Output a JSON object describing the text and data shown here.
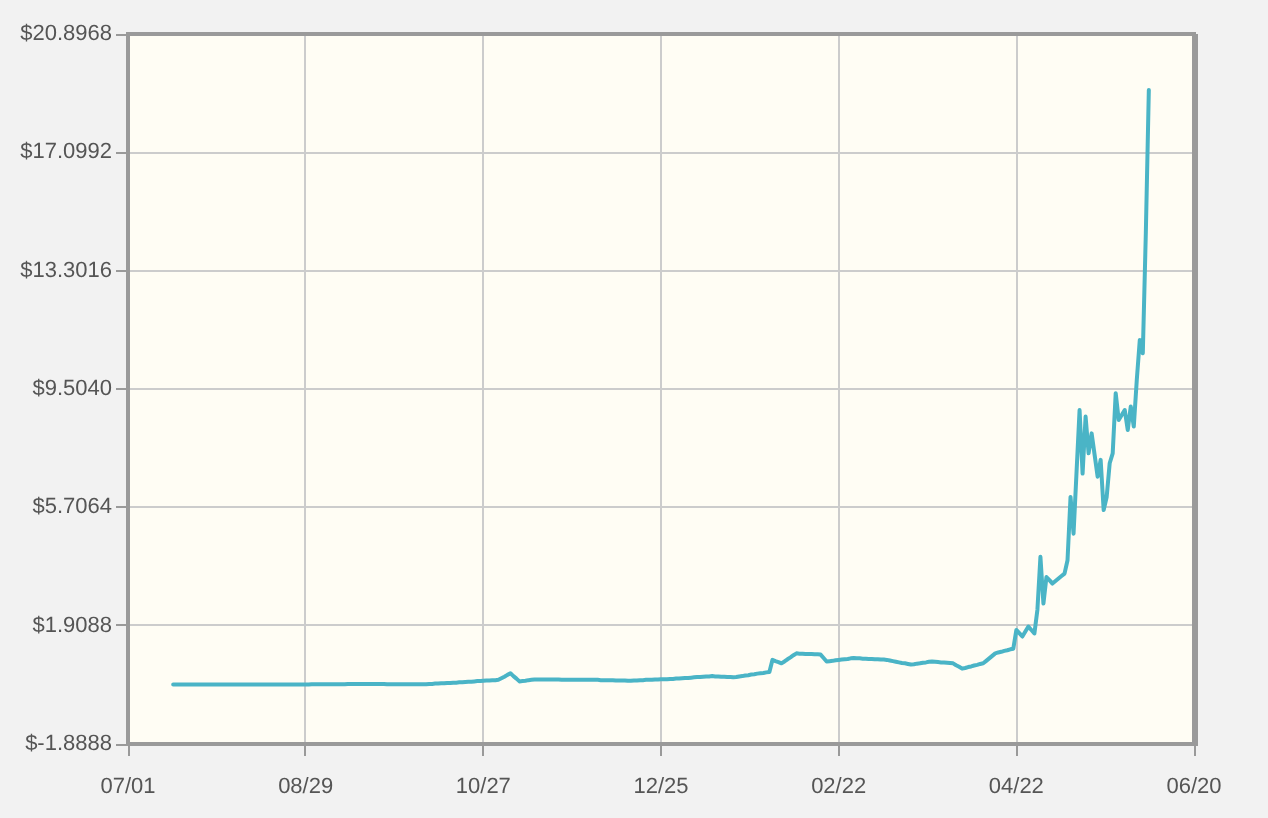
{
  "chart_data": {
    "type": "line",
    "categories": [
      "07/01",
      null,
      null,
      null,
      null,
      null,
      null,
      null,
      null,
      null,
      null,
      null,
      null,
      null,
      null,
      null,
      null,
      null,
      null,
      null,
      null,
      null,
      null,
      null,
      null,
      null,
      null,
      null,
      null,
      null,
      null,
      null,
      null,
      null,
      null,
      null,
      null,
      null,
      null,
      null,
      null,
      null,
      null,
      null,
      null,
      null,
      null,
      null,
      null,
      null,
      null,
      null,
      null,
      null,
      null,
      null,
      null,
      null,
      null,
      "08/29",
      null,
      null,
      null,
      null,
      null,
      null,
      null,
      null,
      null,
      null,
      null,
      null,
      null,
      null,
      null,
      null,
      null,
      null,
      null,
      null,
      null,
      null,
      null,
      null,
      null,
      null,
      null,
      null,
      null,
      null,
      null,
      null,
      null,
      null,
      null,
      null,
      null,
      null,
      null,
      null,
      null,
      null,
      null,
      null,
      null,
      null,
      null,
      null,
      null,
      null,
      null,
      null,
      null,
      null,
      null,
      null,
      null,
      null,
      "10/27",
      null,
      null,
      null,
      null,
      null,
      null,
      null,
      null,
      null,
      null,
      null,
      null,
      null,
      null,
      null,
      null,
      null,
      null,
      null,
      null,
      null,
      null,
      null,
      null,
      null,
      null,
      null,
      null,
      null,
      null,
      null,
      null,
      null,
      null,
      null,
      null,
      null,
      null,
      null,
      null,
      null,
      null,
      null,
      null,
      null,
      null,
      null,
      null,
      null,
      null,
      null,
      null,
      null,
      null,
      null,
      null,
      null,
      null,
      "12/25",
      null,
      null,
      null,
      null,
      null,
      null,
      null,
      null,
      null,
      null,
      null,
      null,
      null,
      null,
      null,
      null,
      null,
      null,
      null,
      null,
      null,
      null,
      null,
      null,
      null,
      null,
      null,
      null,
      null,
      null,
      null,
      null,
      null,
      null,
      null,
      null,
      null,
      null,
      null,
      null,
      null,
      null,
      null,
      null,
      null,
      null,
      null,
      null,
      null,
      null,
      null,
      null,
      null,
      null,
      null,
      null,
      null,
      null,
      "02/22",
      null,
      null,
      null,
      null,
      null,
      null,
      null,
      null,
      null,
      null,
      null,
      null,
      null,
      null,
      null,
      null,
      null,
      null,
      null,
      null,
      null,
      null,
      null,
      null,
      null,
      null,
      null,
      null,
      null,
      null,
      null,
      null,
      null,
      null,
      null,
      null,
      null,
      null,
      null,
      null,
      null,
      null,
      null,
      null,
      null,
      null,
      null,
      null,
      null,
      null,
      null,
      null,
      null,
      null,
      null,
      null,
      null,
      null,
      "04/22",
      null,
      null,
      null,
      null,
      null,
      null,
      null,
      null,
      null,
      null,
      null,
      null,
      null,
      null,
      null,
      null,
      null,
      null,
      null,
      null,
      null,
      null,
      null,
      null,
      null,
      null,
      null,
      null,
      null,
      null,
      null,
      null,
      null,
      null,
      null,
      null,
      null,
      null,
      null,
      null,
      null,
      null,
      null,
      null,
      null,
      null,
      null,
      null,
      null,
      null,
      null,
      null,
      null,
      null,
      null,
      null,
      null,
      null,
      "06/20"
    ],
    "values": [
      null,
      null,
      null,
      null,
      null,
      null,
      null,
      null,
      null,
      null,
      null,
      null,
      null,
      null,
      null,
      0.02,
      0.02,
      0.02,
      0.02,
      0.02,
      0.02,
      0.02,
      0.02,
      0.02,
      0.02,
      0.02,
      0.02,
      0.02,
      0.02,
      0.02,
      0.02,
      0.02,
      0.02,
      0.02,
      0.02,
      0.02,
      0.02,
      0.02,
      0.02,
      0.02,
      0.02,
      0.02,
      0.02,
      0.02,
      0.02,
      0.02,
      0.02,
      0.02,
      0.02,
      0.02,
      0.02,
      0.02,
      0.02,
      0.02,
      0.02,
      0.02,
      0.02,
      0.02,
      0.02,
      0.02,
      0.02,
      0.03,
      0.03,
      0.03,
      0.03,
      0.03,
      0.03,
      0.03,
      0.03,
      0.03,
      0.03,
      0.03,
      0.03,
      0.04,
      0.04,
      0.04,
      0.04,
      0.04,
      0.04,
      0.04,
      0.04,
      0.04,
      0.04,
      0.04,
      0.04,
      0.04,
      0.03,
      0.03,
      0.03,
      0.03,
      0.03,
      0.03,
      0.03,
      0.03,
      0.03,
      0.03,
      0.03,
      0.03,
      0.03,
      0.03,
      0.04,
      0.04,
      0.05,
      0.05,
      0.06,
      0.06,
      0.07,
      0.07,
      0.08,
      0.08,
      0.09,
      0.09,
      0.1,
      0.11,
      0.11,
      0.12,
      0.13,
      0.13,
      0.14,
      0.15,
      0.15,
      0.16,
      0.16,
      0.17,
      0.22,
      0.27,
      0.33,
      0.38,
      0.29,
      0.21,
      0.12,
      0.13,
      0.14,
      0.16,
      0.17,
      0.18,
      0.18,
      0.18,
      0.18,
      0.18,
      0.18,
      0.18,
      0.18,
      0.18,
      0.17,
      0.17,
      0.17,
      0.17,
      0.17,
      0.17,
      0.17,
      0.17,
      0.17,
      0.17,
      0.17,
      0.17,
      0.17,
      0.16,
      0.16,
      0.16,
      0.16,
      0.16,
      0.15,
      0.15,
      0.15,
      0.15,
      0.14,
      0.14,
      0.15,
      0.15,
      0.16,
      0.16,
      0.17,
      0.17,
      0.17,
      0.18,
      0.18,
      0.19,
      0.19,
      0.19,
      0.2,
      0.2,
      0.21,
      0.21,
      0.22,
      0.23,
      0.23,
      0.24,
      0.25,
      0.26,
      0.26,
      0.27,
      0.28,
      0.28,
      0.29,
      0.28,
      0.28,
      0.27,
      0.27,
      0.26,
      0.26,
      0.25,
      0.26,
      0.28,
      0.29,
      0.31,
      0.32,
      0.34,
      0.35,
      0.37,
      0.38,
      0.39,
      0.41,
      0.42,
      0.81,
      0.77,
      0.74,
      0.7,
      0.76,
      0.83,
      0.89,
      0.96,
      1.02,
      1.01,
      1.01,
      1.0,
      1.0,
      1.0,
      0.99,
      0.99,
      0.98,
      0.87,
      0.76,
      0.77,
      0.78,
      0.8,
      0.81,
      0.82,
      0.83,
      0.84,
      0.86,
      0.87,
      0.86,
      0.86,
      0.85,
      0.85,
      0.84,
      0.84,
      0.83,
      0.83,
      0.82,
      0.82,
      0.81,
      0.79,
      0.77,
      0.75,
      0.73,
      0.71,
      0.7,
      0.68,
      0.66,
      0.67,
      0.69,
      0.7,
      0.72,
      0.73,
      0.75,
      0.76,
      0.75,
      0.74,
      0.73,
      0.73,
      0.72,
      0.71,
      0.7,
      0.64,
      0.59,
      0.53,
      0.55,
      0.58,
      0.6,
      0.63,
      0.65,
      0.68,
      0.7,
      0.78,
      0.86,
      0.94,
      1.02,
      1.05,
      1.07,
      1.1,
      1.12,
      1.15,
      1.17,
      1.77,
      1.67,
      1.56,
      1.72,
      1.88,
      1.77,
      1.66,
      2.42,
      4.12,
      2.62,
      3.47,
      3.37,
      3.26,
      3.34,
      3.42,
      3.5,
      3.58,
      4.01,
      6.04,
      4.86,
      6.85,
      8.83,
      6.79,
      8.62,
      7.44,
      8.08,
      7.39,
      6.69,
      7.23,
      5.62,
      6.04,
      7.12,
      7.44,
      9.37,
      8.51,
      8.67,
      8.83,
      8.19,
      8.94,
      8.3,
      9.8,
      11.08,
      10.65,
      14.5,
      19.1,
      null,
      null,
      null,
      null,
      null,
      null,
      null,
      null,
      null,
      null,
      null,
      null,
      null,
      null,
      null
    ],
    "color": "#4ab4c6",
    "ylim": [
      -1.8888,
      20.8968
    ],
    "yticks": [
      {
        "value": -1.8888,
        "label": "$-1.8888"
      },
      {
        "value": 1.9088,
        "label": "$1.9088"
      },
      {
        "value": 5.7064,
        "label": "$5.7064"
      },
      {
        "value": 9.504,
        "label": "$9.5040"
      },
      {
        "value": 13.3016,
        "label": "$13.3016"
      },
      {
        "value": 17.0992,
        "label": "$17.0992"
      },
      {
        "value": 20.8968,
        "label": "$20.8968"
      }
    ],
    "grid": true,
    "marker": "none",
    "line_style": "solid",
    "legend": false
  }
}
